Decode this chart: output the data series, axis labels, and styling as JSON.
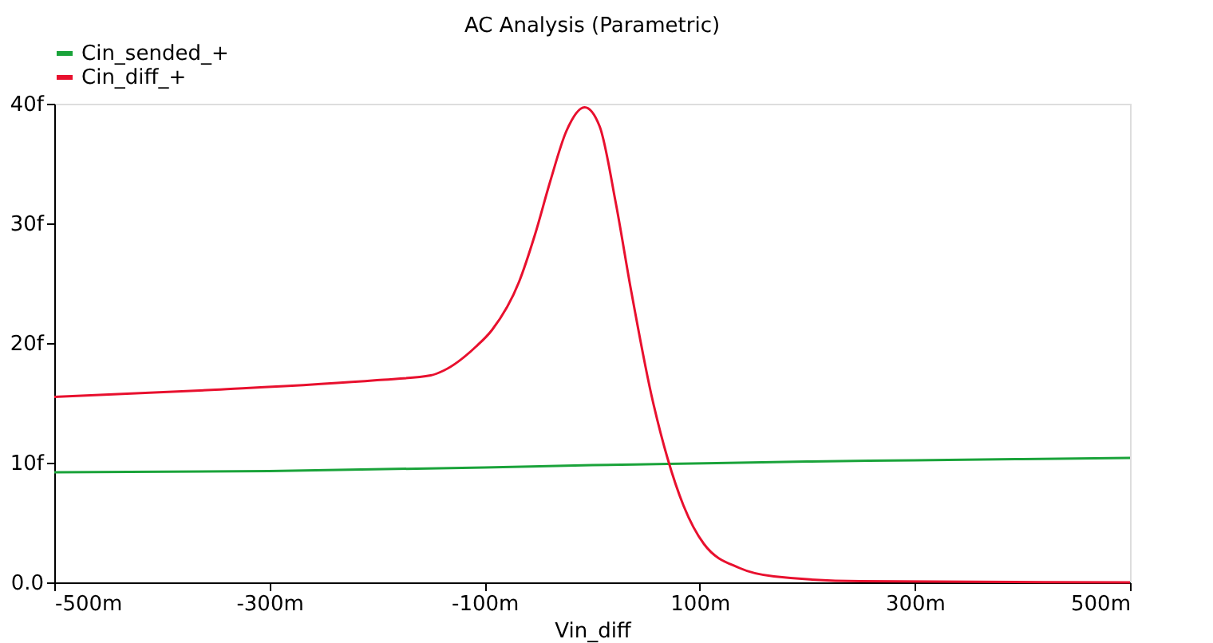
{
  "chart_data": {
    "type": "line",
    "title": "AC Analysis (Parametric)",
    "xlabel": "Vin_diff",
    "xlim": [
      -500,
      500
    ],
    "ylim": [
      0,
      40
    ],
    "xticks": [
      {
        "value": -500,
        "label": "-500m"
      },
      {
        "value": -300,
        "label": "-300m"
      },
      {
        "value": -100,
        "label": "-100m"
      },
      {
        "value": 100,
        "label": "100m"
      },
      {
        "value": 300,
        "label": "300m"
      },
      {
        "value": 500,
        "label": "500m"
      }
    ],
    "yticks": [
      {
        "value": 0,
        "label": "0.0"
      },
      {
        "value": 10,
        "label": "10f"
      },
      {
        "value": 20,
        "label": "20f"
      },
      {
        "value": 30,
        "label": "30f"
      },
      {
        "value": 40,
        "label": "40f"
      }
    ],
    "grid": false,
    "legend": "top left",
    "line_style": "solid",
    "series": [
      {
        "name": "Cin_sended_+",
        "color": "#1aa33a",
        "x": [
          -500,
          -300,
          -100,
          0,
          70,
          200,
          300,
          500
        ],
        "values": [
          9.2,
          9.3,
          9.6,
          9.8,
          9.9,
          10.1,
          10.2,
          10.4
        ]
      },
      {
        "name": "Cin_diff_+",
        "color": "#e8102e",
        "x": [
          -500,
          -350,
          -200,
          -150,
          -138,
          -108,
          -93,
          -68,
          -53,
          -39,
          -24,
          -7,
          7,
          22,
          36,
          55,
          70,
          85,
          104,
          137,
          169,
          250,
          500
        ],
        "values": [
          15.5,
          16.1,
          16.9,
          17.3,
          17.7,
          19.7,
          21.1,
          25.1,
          29.1,
          33.5,
          37.7,
          39.7,
          38.1,
          31.7,
          24.5,
          15.7,
          10.4,
          6.4,
          3.2,
          1.2,
          0.5,
          0.1,
          0
        ]
      }
    ]
  }
}
